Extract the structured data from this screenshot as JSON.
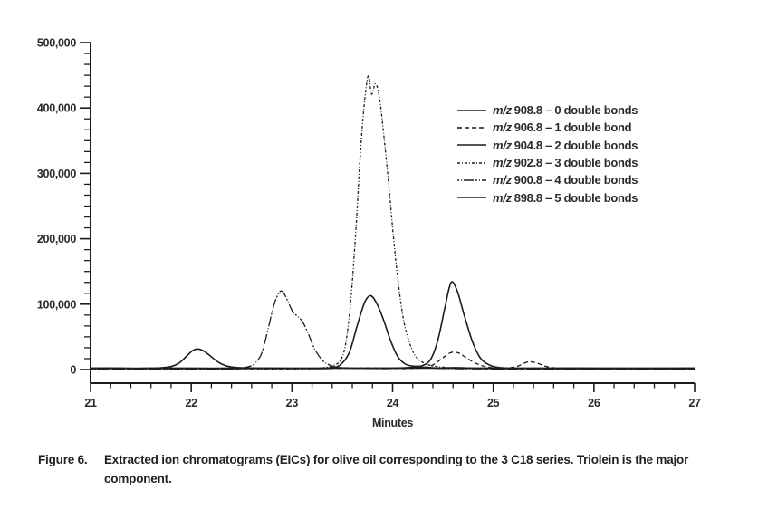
{
  "figure": {
    "label": "Figure 6.",
    "caption": "Extracted ion chromatograms (EICs) for olive oil corresponding to the 3 C18 series. Triolein is the major component."
  },
  "chart_data": {
    "type": "line",
    "title": "",
    "xlabel": "Minutes",
    "ylabel": "",
    "xlim": [
      21,
      27
    ],
    "ylim": [
      0,
      500000
    ],
    "x_ticks": [
      "21",
      "22",
      "23",
      "24",
      "25",
      "26",
      "27"
    ],
    "y_ticks": [
      "0",
      "100,000",
      "200,000",
      "300,000",
      "400,000",
      "500,000"
    ],
    "x_minor_divisions": 5,
    "y_minor_divisions": 6,
    "grid": false,
    "legend_position": "upper-right-inside",
    "line_color": "#1c1c1c",
    "series": [
      {
        "name": "m/z 908.8 - 0 double bonds",
        "legend_prefix": "m/z",
        "legend_text": "908.8 – 0 double bonds",
        "mz": 908.8,
        "double_bonds": 0,
        "style": "solid",
        "points": [
          [
            21,
            2200
          ],
          [
            21.3,
            2200
          ],
          [
            21.45,
            1500
          ],
          [
            21.6,
            2200
          ],
          [
            22.2,
            2100
          ],
          [
            22.8,
            2200
          ],
          [
            23.3,
            1500
          ],
          [
            23.45,
            2600
          ],
          [
            23.7,
            2000
          ],
          [
            24.05,
            2300
          ],
          [
            24.3,
            3600
          ],
          [
            24.45,
            2200
          ],
          [
            24.62,
            2900
          ],
          [
            24.8,
            2200
          ],
          [
            25.2,
            2100
          ],
          [
            25.7,
            2200
          ],
          [
            26.3,
            2000
          ],
          [
            27,
            2200
          ]
        ]
      },
      {
        "name": "m/z 906.8 - 1 double bond",
        "legend_prefix": "m/z",
        "legend_text": "906.8 – 1 double bond",
        "mz": 906.8,
        "double_bonds": 1,
        "style": "dash",
        "points": [
          [
            21,
            1300
          ],
          [
            22,
            1300
          ],
          [
            23,
            1300
          ],
          [
            23.55,
            1900
          ],
          [
            23.75,
            2600
          ],
          [
            23.95,
            1900
          ],
          [
            24.15,
            1500
          ],
          [
            24.3,
            2600
          ],
          [
            24.4,
            7000
          ],
          [
            24.5,
            18000
          ],
          [
            24.58,
            26000
          ],
          [
            24.66,
            25000
          ],
          [
            24.75,
            16000
          ],
          [
            24.85,
            8000
          ],
          [
            24.95,
            3600
          ],
          [
            25.05,
            1900
          ],
          [
            25.15,
            2300
          ],
          [
            25.25,
            5600
          ],
          [
            25.34,
            11500
          ],
          [
            25.42,
            10600
          ],
          [
            25.52,
            5000
          ],
          [
            25.62,
            2300
          ],
          [
            25.8,
            1400
          ],
          [
            26.3,
            1300
          ],
          [
            27,
            1300
          ]
        ]
      },
      {
        "name": "m/z 904.8 - 2 double bonds",
        "legend_prefix": "m/z",
        "legend_text": "904.8 – 2 double bonds",
        "mz": 904.8,
        "double_bonds": 2,
        "style": "solid",
        "points": [
          [
            21,
            1700
          ],
          [
            22,
            1700
          ],
          [
            22.8,
            1700
          ],
          [
            23.2,
            1900
          ],
          [
            23.38,
            2600
          ],
          [
            23.48,
            7000
          ],
          [
            23.57,
            26000
          ],
          [
            23.65,
            68000
          ],
          [
            23.72,
            102000
          ],
          [
            23.78,
            113000
          ],
          [
            23.84,
            102000
          ],
          [
            23.91,
            76000
          ],
          [
            23.98,
            44000
          ],
          [
            24.05,
            20000
          ],
          [
            24.12,
            9000
          ],
          [
            24.2,
            5200
          ],
          [
            24.3,
            6200
          ],
          [
            24.38,
            16000
          ],
          [
            24.45,
            45000
          ],
          [
            24.52,
            95000
          ],
          [
            24.58,
            133000
          ],
          [
            24.64,
            121000
          ],
          [
            24.71,
            84000
          ],
          [
            24.79,
            44000
          ],
          [
            24.87,
            18000
          ],
          [
            24.96,
            7000
          ],
          [
            25.06,
            3100
          ],
          [
            25.2,
            1900
          ],
          [
            25.5,
            1700
          ],
          [
            26.2,
            1700
          ],
          [
            27,
            1700
          ]
        ]
      },
      {
        "name": "m/z 902.8 - 3 double bonds",
        "legend_prefix": "m/z",
        "legend_text": "902.8 – 3 double bonds",
        "mz": 902.8,
        "double_bonds": 3,
        "style": "finedash",
        "points": [
          [
            21,
            800
          ],
          [
            21.8,
            800
          ],
          [
            22.42,
            900
          ],
          [
            22.52,
            1900
          ],
          [
            22.62,
            1200
          ],
          [
            23,
            900
          ],
          [
            23.22,
            1600
          ],
          [
            23.33,
            3200
          ],
          [
            23.42,
            6500
          ],
          [
            23.49,
            16000
          ],
          [
            23.54,
            45000
          ],
          [
            23.59,
            115000
          ],
          [
            23.64,
            225000
          ],
          [
            23.68,
            330000
          ],
          [
            23.72,
            408000
          ],
          [
            23.76,
            450000
          ],
          [
            23.79,
            421000
          ],
          [
            23.83,
            437000
          ],
          [
            23.87,
            416000
          ],
          [
            23.91,
            362000
          ],
          [
            23.96,
            285000
          ],
          [
            24.01,
            200000
          ],
          [
            24.06,
            128000
          ],
          [
            24.11,
            75000
          ],
          [
            24.17,
            40000
          ],
          [
            24.23,
            20000
          ],
          [
            24.31,
            10000
          ],
          [
            24.4,
            5600
          ],
          [
            24.5,
            3600
          ],
          [
            24.62,
            2600
          ],
          [
            24.8,
            1600
          ],
          [
            25.05,
            900
          ],
          [
            25.6,
            800
          ],
          [
            26.3,
            800
          ],
          [
            27,
            800
          ]
        ]
      },
      {
        "name": "m/z 900.8 - 4 double bonds",
        "legend_prefix": "m/z",
        "legend_text": "900.8 – 4 double bonds",
        "mz": 900.8,
        "double_bonds": 4,
        "style": "dashdot",
        "points": [
          [
            21,
            1000
          ],
          [
            21.8,
            1000
          ],
          [
            22.32,
            1000
          ],
          [
            22.45,
            1600
          ],
          [
            22.55,
            3600
          ],
          [
            22.63,
            9000
          ],
          [
            22.7,
            25000
          ],
          [
            22.76,
            60000
          ],
          [
            22.82,
            98000
          ],
          [
            22.87,
            117000
          ],
          [
            22.91,
            119000
          ],
          [
            22.96,
            104000
          ],
          [
            23.01,
            88000
          ],
          [
            23.06,
            81000
          ],
          [
            23.11,
            72000
          ],
          [
            23.17,
            52000
          ],
          [
            23.23,
            30000
          ],
          [
            23.31,
            13000
          ],
          [
            23.39,
            6000
          ],
          [
            23.47,
            3100
          ],
          [
            23.57,
            2100
          ],
          [
            23.72,
            1600
          ],
          [
            23.9,
            1300
          ],
          [
            24.1,
            2100
          ],
          [
            24.25,
            3100
          ],
          [
            24.4,
            2100
          ],
          [
            24.6,
            1300
          ],
          [
            25,
            1000
          ],
          [
            26,
            1000
          ],
          [
            27,
            1000
          ]
        ]
      },
      {
        "name": "m/z 898.8 - 5 double bonds",
        "legend_prefix": "m/z",
        "legend_text": "898.8 – 5 double bonds",
        "mz": 898.8,
        "double_bonds": 5,
        "style": "solid",
        "points": [
          [
            21,
            2100
          ],
          [
            21.55,
            2100
          ],
          [
            21.7,
            2600
          ],
          [
            21.8,
            4600
          ],
          [
            21.88,
            10000
          ],
          [
            21.95,
            20000
          ],
          [
            22.01,
            28500
          ],
          [
            22.06,
            31500
          ],
          [
            22.11,
            29500
          ],
          [
            22.18,
            22000
          ],
          [
            22.26,
            12000
          ],
          [
            22.34,
            6000
          ],
          [
            22.43,
            3300
          ],
          [
            22.52,
            2500
          ],
          [
            22.7,
            2100
          ],
          [
            23.1,
            2100
          ],
          [
            23.6,
            2100
          ],
          [
            24.1,
            2100
          ],
          [
            24.7,
            2100
          ],
          [
            25.4,
            2100
          ],
          [
            26.2,
            2100
          ],
          [
            27,
            2100
          ]
        ]
      }
    ]
  }
}
